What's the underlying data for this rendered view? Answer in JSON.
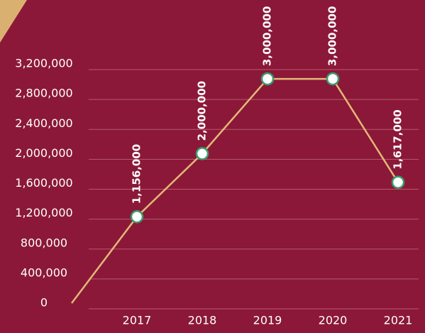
{
  "chart_data": {
    "type": "line",
    "categories": [
      null,
      "2017",
      "2018",
      "2019",
      "2020",
      "2021"
    ],
    "values": [
      0,
      1156000,
      2000000,
      3000000,
      3000000,
      1617000
    ],
    "value_labels": [
      null,
      "1,156,000",
      "2,000,000",
      "3,000,000",
      "3,000,000",
      "1,617,000"
    ],
    "color": "#e3b877",
    "marker_edge_color": "#3a9b6c",
    "ylim": [
      0,
      3200000
    ],
    "yticks": [
      0,
      {
        "value": 400000,
        "label": "400,000"
      },
      {
        "value": 800000,
        "label": "800,000"
      },
      {
        "value": 1200000,
        "label": "1,200,000"
      },
      {
        "value": 1600000,
        "label": "1,600,000"
      },
      {
        "value": 2000000,
        "label": "2,000,000"
      },
      {
        "value": 2400000,
        "label": "2,400,000"
      },
      {
        "value": 2800000,
        "label": "2,800,000"
      },
      {
        "value": 3200000,
        "label": "3,200,000"
      }
    ],
    "grid": true
  }
}
